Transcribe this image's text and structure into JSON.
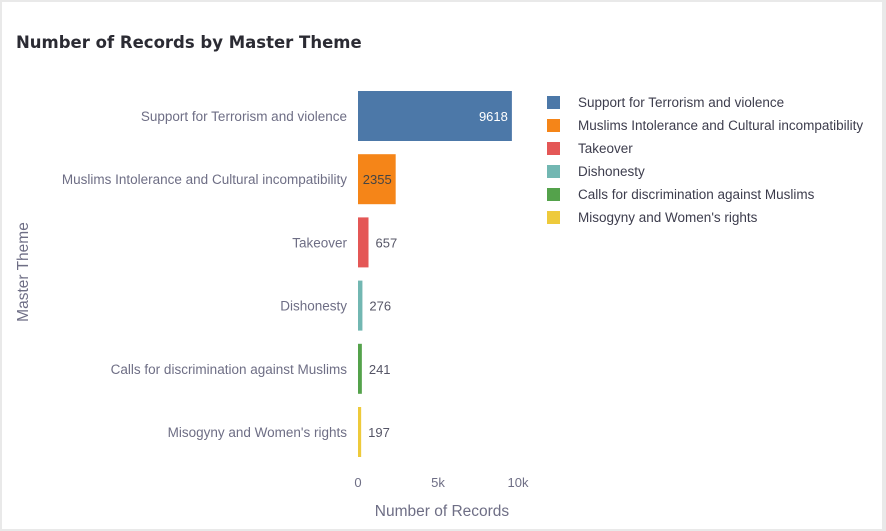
{
  "chart_data": {
    "type": "bar",
    "orientation": "horizontal",
    "title": "Number of Records by Master Theme",
    "xlabel": "Number of Records",
    "ylabel": "Master Theme",
    "xlim": [
      0,
      10000
    ],
    "x_ticks": [
      {
        "value": 0,
        "label": "0"
      },
      {
        "value": 5000,
        "label": "5k"
      },
      {
        "value": 10000,
        "label": "10k"
      }
    ],
    "grid": false,
    "legend_position": "right",
    "categories": [
      "Support for Terrorism and violence",
      "Muslims Intolerance and Cultural incompatibility",
      "Takeover",
      "Dishonesty",
      "Calls for discrimination against Muslims",
      "Misogyny and Women's rights"
    ],
    "values": [
      9618,
      2355,
      657,
      276,
      241,
      197
    ],
    "value_labels": [
      "9618",
      "2355",
      "657",
      "276",
      "241",
      "197"
    ],
    "colors": [
      "#4c78a8",
      "#f58518",
      "#e45756",
      "#72b7b2",
      "#54a24b",
      "#eeca3b"
    ],
    "legend": [
      "Support for Terrorism and violence",
      "Muslims Intolerance and Cultural incompatibility",
      "Takeover",
      "Dishonesty",
      "Calls for discrimination against Muslims",
      "Misogyny and Women's rights"
    ]
  }
}
